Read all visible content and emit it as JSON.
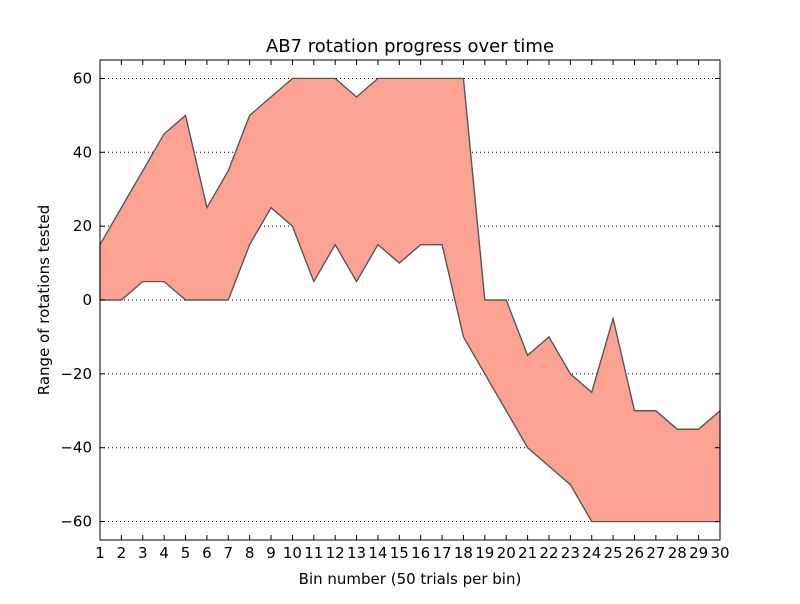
{
  "chart_data": {
    "type": "area",
    "title": "AB7 rotation progress over time",
    "xlabel": "Bin number (50 trials per bin)",
    "ylabel": "Range of rotations tested",
    "xlim": [
      1,
      30
    ],
    "ylim": [
      -65,
      65
    ],
    "x_ticks": [
      1,
      2,
      3,
      4,
      5,
      6,
      7,
      8,
      9,
      10,
      11,
      12,
      13,
      14,
      15,
      16,
      17,
      18,
      19,
      20,
      21,
      22,
      23,
      24,
      25,
      26,
      27,
      28,
      29,
      30
    ],
    "y_ticks": [
      -60,
      -40,
      -20,
      0,
      20,
      40,
      60
    ],
    "y_tick_labels": [
      "−60",
      "−40",
      "−20",
      "0",
      "20",
      "40",
      "60"
    ],
    "grid": "horizontal dotted",
    "x": [
      1,
      2,
      3,
      4,
      5,
      6,
      7,
      8,
      9,
      10,
      11,
      12,
      13,
      14,
      15,
      16,
      17,
      18,
      19,
      20,
      21,
      22,
      23,
      24,
      25,
      26,
      27,
      28,
      29,
      30
    ],
    "series": [
      {
        "upper": [
          15,
          25,
          35,
          45,
          50,
          25,
          35,
          50,
          55,
          60,
          60,
          60,
          55,
          60,
          60,
          60,
          60,
          60,
          0,
          0,
          -15,
          -10,
          -20,
          -25,
          -5,
          -30,
          -30,
          -35,
          -35,
          -30
        ],
        "lower": [
          0,
          0,
          5,
          5,
          0,
          0,
          0,
          15,
          25,
          20,
          5,
          15,
          5,
          15,
          10,
          15,
          15,
          -10,
          -20,
          -30,
          -40,
          -45,
          -50,
          -60,
          -60,
          -60,
          -60,
          -60,
          -60,
          -60
        ],
        "fill_color": "#fca292",
        "line_color": "#555555"
      }
    ]
  }
}
